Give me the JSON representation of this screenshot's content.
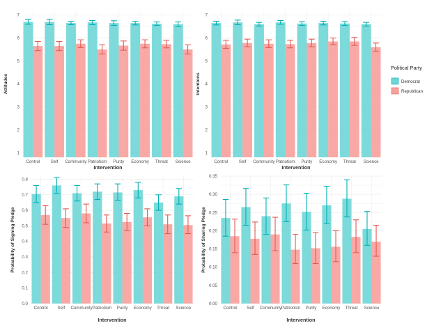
{
  "colors": {
    "democrat_fill": "#6ED6D6",
    "democrat_line": "#00B0B5",
    "republican_fill": "#F7A09C",
    "republican_line": "#E35A52",
    "grid": "#EEEEEE"
  },
  "legend": {
    "title": "Political Party",
    "entries": [
      "Democrat",
      "Republican"
    ]
  },
  "chart_data": [
    {
      "type": "bar",
      "panel": "top-left",
      "xlabel": "Intervention",
      "ylabel": "Attitudes",
      "categories": [
        "Control",
        "Self",
        "Community",
        "Patriotism",
        "Purity",
        "Economy",
        "Threat",
        "Science"
      ],
      "ylim": [
        0.8,
        7.2
      ],
      "yticks": [
        1,
        2,
        3,
        4,
        5,
        6,
        7
      ],
      "ytick_labels": [
        "1",
        "2",
        "3",
        "4",
        "5",
        "6",
        "7"
      ],
      "series": [
        {
          "name": "Democrat",
          "values": [
            6.7,
            6.7,
            6.65,
            6.68,
            6.65,
            6.65,
            6.62,
            6.6
          ],
          "err_low": [
            6.6,
            6.58,
            6.58,
            6.58,
            6.55,
            6.57,
            6.55,
            6.5
          ],
          "err_high": [
            6.8,
            6.8,
            6.72,
            6.76,
            6.75,
            6.72,
            6.7,
            6.7
          ]
        },
        {
          "name": "Republican",
          "values": [
            5.65,
            5.65,
            5.75,
            5.5,
            5.67,
            5.75,
            5.73,
            5.5
          ],
          "err_low": [
            5.45,
            5.45,
            5.58,
            5.3,
            5.47,
            5.57,
            5.57,
            5.3
          ],
          "err_high": [
            5.85,
            5.85,
            5.92,
            5.7,
            5.87,
            5.92,
            5.9,
            5.7
          ]
        }
      ]
    },
    {
      "type": "bar",
      "panel": "top-right",
      "xlabel": "Intervention",
      "ylabel": "Intentions",
      "categories": [
        "Control",
        "Self",
        "Community",
        "Patriotism",
        "Purity",
        "Economy",
        "Threat",
        "Science"
      ],
      "ylim": [
        0.8,
        7.2
      ],
      "yticks": [
        1,
        2,
        3,
        4,
        5,
        6,
        7
      ],
      "ytick_labels": [
        "1",
        "2",
        "3",
        "4",
        "5",
        "6",
        "7"
      ],
      "series": [
        {
          "name": "Democrat",
          "values": [
            6.65,
            6.68,
            6.6,
            6.68,
            6.63,
            6.65,
            6.63,
            6.6
          ],
          "err_low": [
            6.57,
            6.58,
            6.52,
            6.6,
            6.55,
            6.57,
            6.55,
            6.52
          ],
          "err_high": [
            6.73,
            6.78,
            6.68,
            6.76,
            6.71,
            6.73,
            6.71,
            6.68
          ]
        },
        {
          "name": "Republican",
          "values": [
            5.72,
            5.78,
            5.75,
            5.73,
            5.78,
            5.85,
            5.85,
            5.6
          ],
          "err_low": [
            5.55,
            5.62,
            5.58,
            5.57,
            5.62,
            5.7,
            5.68,
            5.42
          ],
          "err_high": [
            5.9,
            5.95,
            5.92,
            5.9,
            5.95,
            6.0,
            6.02,
            5.78
          ]
        }
      ]
    },
    {
      "type": "bar",
      "panel": "bottom-left",
      "xlabel": "Intervention",
      "ylabel": "Probability of Signing Pledge",
      "categories": [
        "Control",
        "Self",
        "Community",
        "Patriotism",
        "Purity",
        "Economy",
        "Threat",
        "Science"
      ],
      "ylim": [
        0,
        0.82
      ],
      "yticks": [
        0,
        0.1,
        0.2,
        0.3,
        0.4,
        0.5,
        0.6,
        0.7,
        0.8
      ],
      "ytick_labels": [
        "0.0",
        "0.1",
        "0.2",
        "0.3",
        "0.4",
        "0.5",
        "0.6",
        "0.7",
        "0.8"
      ],
      "series": [
        {
          "name": "Democrat",
          "values": [
            0.705,
            0.76,
            0.71,
            0.72,
            0.715,
            0.73,
            0.65,
            0.69
          ],
          "err_low": [
            0.65,
            0.71,
            0.66,
            0.67,
            0.665,
            0.68,
            0.6,
            0.64
          ],
          "err_high": [
            0.76,
            0.81,
            0.76,
            0.77,
            0.77,
            0.78,
            0.7,
            0.74
          ]
        },
        {
          "name": "Republican",
          "values": [
            0.57,
            0.55,
            0.58,
            0.515,
            0.525,
            0.555,
            0.51,
            0.505
          ],
          "err_low": [
            0.51,
            0.49,
            0.52,
            0.46,
            0.47,
            0.5,
            0.45,
            0.45
          ],
          "err_high": [
            0.63,
            0.61,
            0.64,
            0.57,
            0.58,
            0.61,
            0.57,
            0.565
          ]
        }
      ]
    },
    {
      "type": "bar",
      "panel": "bottom-right",
      "xlabel": "Intervention",
      "ylabel": "Probability of Sharing Pledge",
      "categories": [
        "Control",
        "Self",
        "Community",
        "Patriotism",
        "Purity",
        "Economy",
        "Threat",
        "Science"
      ],
      "ylim": [
        0,
        0.35
      ],
      "yticks": [
        0,
        0.05,
        0.1,
        0.15,
        0.2,
        0.25,
        0.3,
        0.35
      ],
      "ytick_labels": [
        "0.00",
        "0.05",
        "0.10",
        "0.15",
        "0.20",
        "0.25",
        "0.30",
        "0.35"
      ],
      "series": [
        {
          "name": "Democrat",
          "values": [
            0.235,
            0.265,
            0.24,
            0.275,
            0.252,
            0.27,
            0.288,
            0.205
          ],
          "err_low": [
            0.185,
            0.215,
            0.19,
            0.225,
            0.202,
            0.22,
            0.238,
            0.16
          ],
          "err_high": [
            0.286,
            0.316,
            0.29,
            0.326,
            0.303,
            0.322,
            0.34,
            0.253
          ]
        },
        {
          "name": "Republican",
          "values": [
            0.185,
            0.178,
            0.19,
            0.148,
            0.152,
            0.156,
            0.183,
            0.17
          ],
          "err_low": [
            0.14,
            0.135,
            0.145,
            0.11,
            0.11,
            0.115,
            0.14,
            0.13
          ],
          "err_high": [
            0.232,
            0.224,
            0.237,
            0.19,
            0.195,
            0.2,
            0.23,
            0.215
          ]
        }
      ]
    }
  ]
}
